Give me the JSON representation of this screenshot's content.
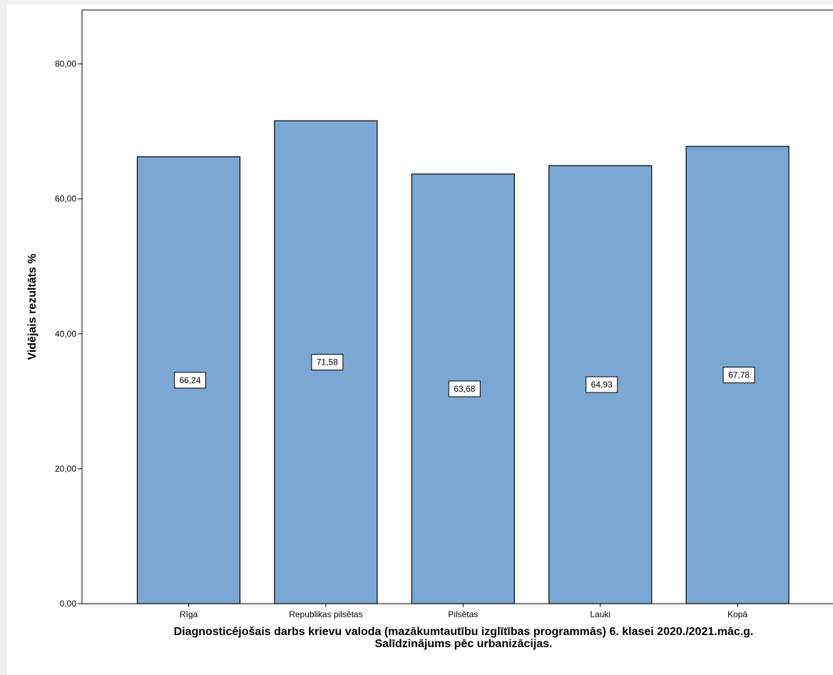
{
  "chart_data": {
    "type": "bar",
    "categories": [
      "Rīga",
      "Republikas pilsētas",
      "Pilsētas",
      "Lauki",
      "Kopā"
    ],
    "values": [
      66.24,
      71.58,
      63.68,
      64.93,
      67.78
    ],
    "value_labels": [
      "66,24",
      "71,58",
      "63,68",
      "64,93",
      "67,78"
    ],
    "ylabel": "Vidējais rezultāts %",
    "xlabel_lines": [
      "Diagnosticējošais darbs krievu valoda (mazākumtautību izglītības programmās) 6. klasei 2020./2021.māc.g.",
      "Salīdzinājums pēc urbanizācijas."
    ],
    "ylim": [
      0,
      88
    ],
    "yticks": [
      0,
      20,
      40,
      60,
      80
    ],
    "ytick_labels": [
      "0,00",
      "20,00",
      "40,00",
      "60,00",
      "80,00"
    ],
    "grid": false,
    "bar_color": "#7ba7d4",
    "bar_edge_color": "#000000"
  }
}
